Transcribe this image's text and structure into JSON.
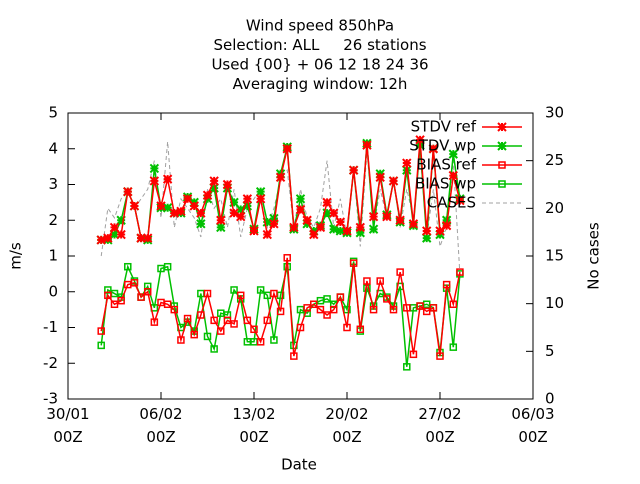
{
  "chart_data": {
    "type": "line",
    "title": [
      "Wind speed 850hPa",
      "Selection: ALL     26 stations",
      "Used {00} + 06 12 18 24 36",
      "Averaging window: 12h"
    ],
    "xlabel": "Date",
    "ylabel": "m/s",
    "y2label": "No cases",
    "xlim": [
      0,
      35
    ],
    "xticks": [
      {
        "value": 0,
        "label": "30/01\n00Z"
      },
      {
        "value": 7,
        "label": "06/02\n00Z"
      },
      {
        "value": 14,
        "label": "13/02\n00Z"
      },
      {
        "value": 21,
        "label": "20/02\n00Z"
      },
      {
        "value": 28,
        "label": "27/02\n00Z"
      },
      {
        "value": 35,
        "label": "06/03\n00Z"
      }
    ],
    "ylim": [
      -3,
      5
    ],
    "yticks": [
      -3,
      -2,
      -1,
      0,
      1,
      2,
      3,
      4,
      5
    ],
    "y2lim": [
      0,
      30
    ],
    "y2ticks": [
      0,
      5,
      10,
      15,
      20,
      25,
      30
    ],
    "legend": "top-right",
    "x": [
      2.5,
      3,
      3.5,
      4,
      4.5,
      5,
      5.5,
      6,
      6.5,
      7,
      7.5,
      8,
      8.5,
      9,
      9.5,
      10,
      10.5,
      11,
      11.5,
      12,
      12.5,
      13,
      13.5,
      14,
      14.5,
      15,
      15.5,
      16,
      16.5,
      17,
      17.5,
      18,
      18.5,
      19,
      19.5,
      20,
      20.5,
      21,
      21.5,
      22,
      22.5,
      23,
      23.5,
      24,
      24.5,
      25,
      25.5,
      26,
      26.5,
      27,
      27.5,
      28,
      28.5,
      29,
      29.5
    ],
    "series": [
      {
        "name": "STDV ref",
        "color": "#ff0000",
        "marker": "star",
        "values": [
          1.45,
          1.5,
          1.8,
          1.6,
          2.8,
          2.4,
          1.5,
          1.5,
          3.1,
          2.4,
          3.15,
          2.2,
          2.25,
          2.6,
          2.4,
          2.2,
          2.7,
          3.1,
          2.0,
          3.0,
          2.2,
          2.1,
          2.6,
          1.7,
          2.6,
          1.6,
          1.9,
          3.2,
          4.0,
          1.8,
          2.3,
          2.0,
          1.6,
          1.8,
          2.5,
          2.2,
          1.95,
          1.7,
          3.4,
          1.8,
          4.1,
          2.1,
          3.2,
          2.1,
          3.1,
          2.0,
          3.6,
          1.9,
          4.25,
          1.7,
          4.0,
          1.7,
          1.85,
          3.25,
          2.55
        ]
      },
      {
        "name": "STDV wp",
        "color": "#00c000",
        "marker": "star",
        "values": [
          1.45,
          1.45,
          1.6,
          2.0,
          2.8,
          2.4,
          1.5,
          1.45,
          3.45,
          2.35,
          2.35,
          2.2,
          2.2,
          2.65,
          2.5,
          1.9,
          2.6,
          2.9,
          1.8,
          2.9,
          2.5,
          2.3,
          2.4,
          1.75,
          2.8,
          1.95,
          2.05,
          3.3,
          4.05,
          1.75,
          2.6,
          1.9,
          1.7,
          1.85,
          2.2,
          1.75,
          1.7,
          1.65,
          3.4,
          1.65,
          4.15,
          1.75,
          3.3,
          2.15,
          3.1,
          1.95,
          3.4,
          1.85,
          4.1,
          1.5,
          4.0,
          1.6,
          2.0,
          3.85,
          2.6
        ]
      },
      {
        "name": "BIAS ref",
        "color": "#ff0000",
        "marker": "square",
        "values": [
          -1.1,
          -0.1,
          -0.35,
          -0.25,
          0.2,
          0.25,
          -0.15,
          0.0,
          -0.85,
          -0.3,
          -0.35,
          -0.5,
          -1.35,
          -0.75,
          -1.2,
          -0.65,
          -0.05,
          -0.8,
          -1.1,
          -0.8,
          -0.9,
          -0.1,
          -0.8,
          -1.05,
          -1.4,
          -0.8,
          -0.05,
          -0.55,
          0.95,
          -1.8,
          -1.0,
          -0.45,
          -0.35,
          -0.5,
          -0.65,
          -0.5,
          -0.15,
          -1.0,
          0.8,
          -1.05,
          0.3,
          -0.5,
          0.3,
          -0.2,
          -0.5,
          0.55,
          -0.45,
          -1.75,
          -0.4,
          -0.55,
          -0.45,
          -1.8,
          0.2,
          -0.35,
          0.55
        ]
      },
      {
        "name": "BIAS wp",
        "color": "#00c000",
        "marker": "square",
        "values": [
          -1.5,
          0.05,
          -0.05,
          -0.15,
          0.7,
          0.3,
          -0.15,
          0.15,
          -0.45,
          0.65,
          0.7,
          -0.4,
          -1.0,
          -0.85,
          -1.1,
          -0.05,
          -1.25,
          -1.6,
          -0.6,
          -0.65,
          0.05,
          -0.2,
          -1.4,
          -1.4,
          0.05,
          -0.1,
          -1.35,
          -0.1,
          0.7,
          -1.5,
          -0.5,
          -0.6,
          -0.35,
          -0.25,
          -0.2,
          -0.35,
          -0.15,
          -0.5,
          0.85,
          -1.1,
          0.1,
          -0.4,
          -0.05,
          -0.15,
          -0.4,
          0.15,
          -2.1,
          -0.45,
          -0.4,
          -0.35,
          -0.45,
          -1.7,
          0.1,
          -1.55,
          0.5
        ]
      },
      {
        "name": "CASES",
        "color": "#a0a0a0",
        "marker": "none",
        "dashed": true,
        "axis": "y2",
        "values": [
          15,
          20,
          19,
          21,
          22,
          20,
          21,
          22,
          25,
          19,
          27,
          18,
          21,
          20,
          19,
          17,
          22,
          20,
          21,
          18,
          22,
          17,
          20,
          21,
          22,
          18,
          20,
          23,
          24,
          18,
          22,
          19,
          18,
          20,
          25,
          18,
          21,
          17,
          24,
          16,
          26,
          18,
          22,
          19,
          23,
          18,
          22,
          19,
          26,
          17,
          22,
          16,
          18,
          25,
          13
        ]
      }
    ]
  }
}
